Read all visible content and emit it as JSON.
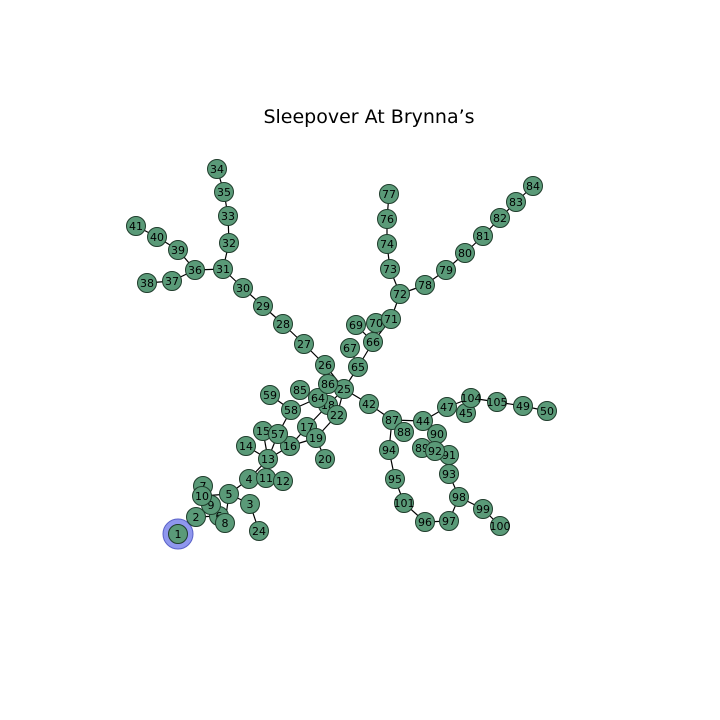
{
  "title": "Sleepover At Brynna’s",
  "colors": {
    "node_fill": "#5a9a78",
    "highlight_fill": "#8f97ee",
    "edge": "#000000",
    "label": "#000000"
  },
  "highlight_node": "1",
  "nodes": [
    "1",
    "2",
    "3",
    "4",
    "5",
    "6",
    "7",
    "8",
    "9",
    "10",
    "11",
    "12",
    "13",
    "14",
    "15",
    "16",
    "17",
    "18",
    "19",
    "20",
    "22",
    "24",
    "25",
    "26",
    "27",
    "28",
    "29",
    "30",
    "31",
    "32",
    "33",
    "34",
    "35",
    "36",
    "37",
    "38",
    "39",
    "40",
    "41",
    "42",
    "44",
    "45",
    "47",
    "49",
    "50",
    "57",
    "58",
    "59",
    "64",
    "65",
    "66",
    "67",
    "69",
    "70",
    "71",
    "72",
    "73",
    "74",
    "76",
    "77",
    "78",
    "79",
    "80",
    "81",
    "82",
    "83",
    "84",
    "85",
    "86",
    "87",
    "88",
    "89",
    "90",
    "91",
    "92",
    "93",
    "94",
    "95",
    "96",
    "97",
    "98",
    "99",
    "100",
    "101",
    "104",
    "105"
  ],
  "edges": [
    [
      "1",
      "2"
    ],
    [
      "2",
      "9"
    ],
    [
      "2",
      "6"
    ],
    [
      "9",
      "10"
    ],
    [
      "10",
      "7"
    ],
    [
      "10",
      "5"
    ],
    [
      "6",
      "8"
    ],
    [
      "5",
      "8"
    ],
    [
      "5",
      "4"
    ],
    [
      "5",
      "3"
    ],
    [
      "3",
      "24"
    ],
    [
      "4",
      "11"
    ],
    [
      "11",
      "12"
    ],
    [
      "4",
      "13"
    ],
    [
      "13",
      "14"
    ],
    [
      "13",
      "15"
    ],
    [
      "13",
      "57"
    ],
    [
      "13",
      "16"
    ],
    [
      "16",
      "17"
    ],
    [
      "16",
      "19"
    ],
    [
      "17",
      "18"
    ],
    [
      "19",
      "20"
    ],
    [
      "19",
      "22"
    ],
    [
      "57",
      "58"
    ],
    [
      "58",
      "64"
    ],
    [
      "58",
      "59"
    ],
    [
      "64",
      "85"
    ],
    [
      "64",
      "86"
    ],
    [
      "64",
      "18"
    ],
    [
      "86",
      "25"
    ],
    [
      "18",
      "25"
    ],
    [
      "22",
      "25"
    ],
    [
      "25",
      "26"
    ],
    [
      "26",
      "27"
    ],
    [
      "27",
      "28"
    ],
    [
      "28",
      "29"
    ],
    [
      "29",
      "30"
    ],
    [
      "30",
      "31"
    ],
    [
      "31",
      "32"
    ],
    [
      "32",
      "33"
    ],
    [
      "33",
      "35"
    ],
    [
      "35",
      "34"
    ],
    [
      "31",
      "36"
    ],
    [
      "36",
      "37"
    ],
    [
      "37",
      "38"
    ],
    [
      "36",
      "39"
    ],
    [
      "39",
      "40"
    ],
    [
      "40",
      "41"
    ],
    [
      "25",
      "65"
    ],
    [
      "65",
      "67"
    ],
    [
      "65",
      "66"
    ],
    [
      "66",
      "69"
    ],
    [
      "66",
      "70"
    ],
    [
      "66",
      "71"
    ],
    [
      "71",
      "72"
    ],
    [
      "72",
      "73"
    ],
    [
      "73",
      "74"
    ],
    [
      "74",
      "76"
    ],
    [
      "76",
      "77"
    ],
    [
      "72",
      "78"
    ],
    [
      "78",
      "79"
    ],
    [
      "79",
      "80"
    ],
    [
      "80",
      "81"
    ],
    [
      "81",
      "82"
    ],
    [
      "82",
      "83"
    ],
    [
      "83",
      "84"
    ],
    [
      "25",
      "42"
    ],
    [
      "42",
      "87"
    ],
    [
      "87",
      "44"
    ],
    [
      "44",
      "47"
    ],
    [
      "47",
      "104"
    ],
    [
      "104",
      "45"
    ],
    [
      "104",
      "105"
    ],
    [
      "105",
      "49"
    ],
    [
      "49",
      "50"
    ],
    [
      "87",
      "88"
    ],
    [
      "87",
      "94"
    ],
    [
      "94",
      "95"
    ],
    [
      "95",
      "101"
    ],
    [
      "101",
      "96"
    ],
    [
      "96",
      "97"
    ],
    [
      "97",
      "98"
    ],
    [
      "98",
      "93"
    ],
    [
      "98",
      "99"
    ],
    [
      "99",
      "100"
    ],
    [
      "93",
      "91"
    ],
    [
      "91",
      "92"
    ],
    [
      "92",
      "89"
    ],
    [
      "92",
      "90"
    ],
    [
      "90",
      "44"
    ]
  ]
}
